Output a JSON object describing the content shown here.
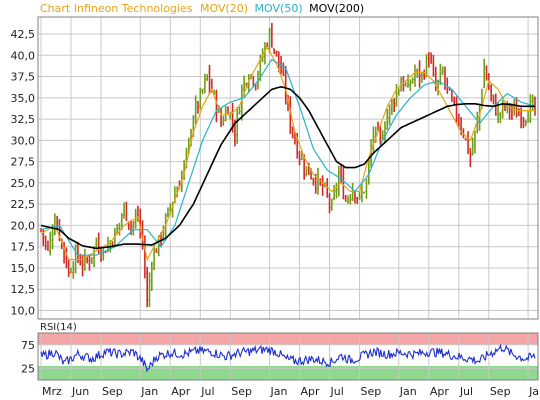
{
  "header": {
    "title_prefix": "Chart Infineon Technologies",
    "legend": [
      {
        "label": "MOV(20)",
        "color": "#e8a317"
      },
      {
        "label": "MOV(50)",
        "color": "#27b3cc"
      },
      {
        "label": "MOV(200)",
        "color": "#000000"
      }
    ]
  },
  "colors": {
    "price_up": "#6b9f1a",
    "price_down": "#d22727",
    "price_bar_mix": "#b8761f",
    "grid": "#c8c8c8",
    "rsi_line": "#1f2fcc",
    "rsi_overbought_band": "#f4a6a6",
    "rsi_oversold_band": "#8fd98f",
    "panel_border": "#808080"
  },
  "chart_data": {
    "type": "line",
    "title": "Chart Infineon Technologies",
    "x_tick_labels": [
      "Mrz",
      "Jun",
      "Sep",
      "Jan",
      "Apr",
      "Jul",
      "Sep",
      "Jan",
      "Apr",
      "Jul",
      "Sep",
      "Jan",
      "Apr",
      "Jul",
      "Sep",
      "Jan"
    ],
    "x_tick_index": [
      0,
      13,
      26,
      43,
      56,
      69,
      82,
      99,
      112,
      125,
      138,
      155,
      168,
      181,
      194,
      211
    ],
    "ylim": [
      9,
      44.5
    ],
    "y_ticks": [
      "10,0",
      "12,5",
      "15,0",
      "17,5",
      "20,0",
      "22,5",
      "25,0",
      "27,5",
      "30,0",
      "32,5",
      "35,0",
      "37,5",
      "40,0",
      "42,5"
    ],
    "y_tick_values": [
      10,
      12.5,
      15,
      17.5,
      20,
      22.5,
      25,
      27.5,
      30,
      32.5,
      35,
      37.5,
      40,
      42.5
    ],
    "grid": true,
    "series": [
      {
        "name": "Infineon Technologies",
        "x_points": [
          0,
          3,
          6,
          9,
          12,
          15,
          18,
          21,
          24,
          27,
          30,
          33,
          36,
          39,
          42,
          44,
          46,
          48,
          51,
          54,
          57,
          60,
          63,
          66,
          69,
          72,
          75,
          78,
          81,
          84,
          87,
          90,
          93,
          96,
          99,
          102,
          105,
          108,
          111,
          114,
          117,
          120,
          123,
          126,
          129,
          132,
          135,
          138,
          141,
          144,
          147,
          150,
          153,
          156,
          159,
          162,
          165,
          168,
          171,
          174,
          177,
          180,
          183,
          186,
          189,
          192,
          195,
          198,
          201,
          204,
          207,
          210,
          212,
          214
        ],
        "y_points": [
          19.5,
          17,
          21,
          18,
          14.5,
          16.5,
          15.5,
          16,
          18,
          17,
          18,
          19.5,
          22,
          20,
          21,
          18,
          11,
          16,
          18,
          20.5,
          23,
          25,
          28,
          33,
          35,
          37.5,
          35,
          32,
          34,
          31,
          36,
          38,
          37,
          40,
          42.5,
          40,
          37,
          32,
          29,
          27,
          26,
          25,
          24,
          22,
          26,
          23,
          24.5,
          23,
          25,
          31,
          30,
          33,
          35,
          37,
          36,
          38,
          37.5,
          40,
          36,
          38,
          35,
          33,
          31,
          28,
          32,
          38.5,
          35,
          33,
          34,
          33.5,
          33,
          33,
          34,
          33.5
        ],
        "volatility": 0.8
      },
      {
        "name": "MOV(20)",
        "x_points": [
          0,
          6,
          12,
          18,
          24,
          30,
          36,
          42,
          46,
          50,
          54,
          58,
          62,
          66,
          70,
          74,
          78,
          82,
          86,
          90,
          94,
          98,
          102,
          106,
          110,
          114,
          118,
          122,
          126,
          130,
          134,
          138,
          142,
          146,
          150,
          154,
          158,
          162,
          166,
          170,
          174,
          178,
          182,
          186,
          190,
          194,
          198,
          202,
          206,
          210,
          214
        ],
        "y_points": [
          19,
          20,
          16,
          16,
          17,
          18,
          20,
          21,
          16,
          18,
          20,
          23,
          26,
          31,
          34,
          36,
          33,
          33,
          34,
          37,
          39,
          41,
          39,
          36,
          31,
          28,
          26,
          25,
          24,
          25,
          24,
          24,
          28,
          31,
          34,
          36,
          37,
          38,
          38,
          37,
          35,
          33,
          31,
          30,
          33,
          37,
          36,
          34,
          33.5,
          33.5,
          33.5
        ]
      },
      {
        "name": "MOV(50)",
        "x_points": [
          0,
          8,
          16,
          24,
          32,
          40,
          46,
          52,
          58,
          64,
          70,
          76,
          82,
          88,
          94,
          100,
          106,
          112,
          118,
          124,
          130,
          136,
          142,
          148,
          154,
          160,
          166,
          172,
          178,
          184,
          190,
          196,
          202,
          208,
          214
        ],
        "y_points": [
          19.5,
          20,
          16.5,
          16.5,
          17.5,
          19.5,
          19.5,
          17.5,
          20,
          25,
          30,
          33.5,
          34.5,
          35,
          37,
          39.5,
          38.5,
          34,
          29,
          26.5,
          25.5,
          24,
          26,
          30,
          33,
          35,
          36.5,
          37,
          36,
          34,
          32,
          34,
          35.5,
          34.5,
          34
        ]
      },
      {
        "name": "MOV(200)",
        "x_points": [
          0,
          8,
          12,
          18,
          24,
          30,
          36,
          42,
          48,
          54,
          60,
          66,
          72,
          78,
          84,
          90,
          96,
          100,
          104,
          108,
          112,
          116,
          120,
          124,
          128,
          132,
          136,
          140,
          144,
          148,
          152,
          156,
          160,
          164,
          168,
          172,
          176,
          180,
          184,
          188,
          192,
          196,
          200,
          204,
          208,
          212,
          214
        ],
        "y_points": [
          20,
          19.5,
          18.5,
          17.6,
          17.3,
          17.5,
          17.8,
          17.8,
          17.7,
          18.5,
          20,
          22.5,
          26,
          29.5,
          32,
          33.5,
          35,
          36,
          36.3,
          36,
          35,
          33.5,
          31.5,
          29.5,
          27.5,
          26.8,
          26.8,
          27.2,
          28.5,
          29.5,
          30.5,
          31.5,
          32,
          32.5,
          33,
          33.5,
          34,
          34.2,
          34.3,
          34.3,
          34.1,
          34,
          34.3,
          34.2,
          34,
          34,
          34
        ]
      }
    ],
    "rsi": {
      "label": "RSI(14)",
      "ylim": [
        0,
        100
      ],
      "y_ticks": [
        "25",
        "75"
      ],
      "y_tick_values": [
        25,
        75
      ],
      "overbought": 75,
      "oversold": 30,
      "x_points": [
        0,
        6,
        10,
        16,
        22,
        28,
        34,
        40,
        44,
        46,
        50,
        56,
        62,
        68,
        74,
        80,
        86,
        92,
        98,
        102,
        106,
        110,
        114,
        118,
        122,
        126,
        130,
        134,
        138,
        144,
        150,
        156,
        162,
        168,
        174,
        180,
        186,
        190,
        194,
        200,
        204,
        210,
        214
      ],
      "y_points": [
        50,
        60,
        35,
        55,
        45,
        60,
        55,
        60,
        40,
        20,
        50,
        58,
        55,
        62,
        60,
        50,
        58,
        62,
        65,
        60,
        45,
        40,
        42,
        45,
        40,
        38,
        52,
        42,
        48,
        60,
        55,
        58,
        55,
        60,
        58,
        50,
        45,
        40,
        55,
        70,
        55,
        45,
        50
      ],
      "noise": 10
    }
  }
}
